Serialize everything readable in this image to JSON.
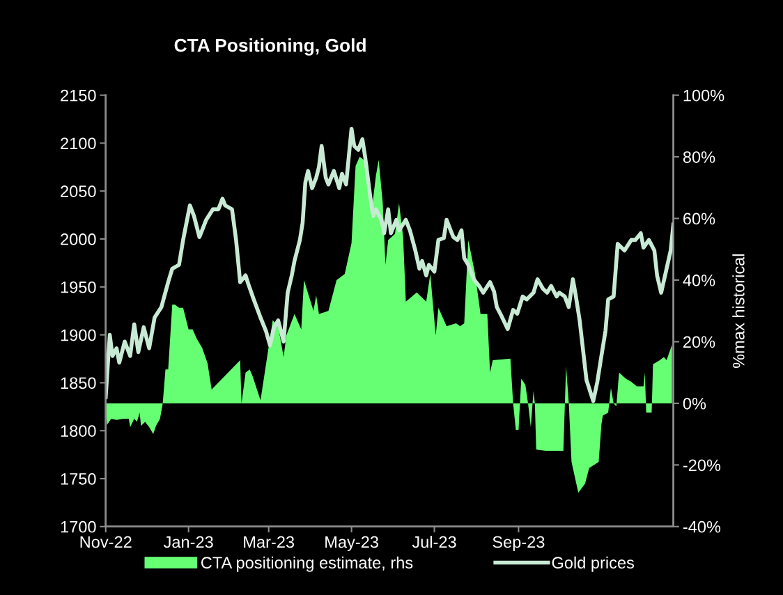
{
  "chart_data": {
    "type": "line",
    "title": "CTA Positioning, Gold",
    "y2label": "%max historical",
    "xlim": [
      "2022-11-01",
      "2023-12-24"
    ],
    "xticks": [
      {
        "value": "2022-11-01",
        "label": "Nov-22"
      },
      {
        "value": "2023-01-01",
        "label": "Jan-23"
      },
      {
        "value": "2023-03-01",
        "label": "Mar-23"
      },
      {
        "value": "2023-05-01",
        "label": "May-23"
      },
      {
        "value": "2023-07-01",
        "label": "Jul-23"
      },
      {
        "value": "2023-09-01",
        "label": "Sep-23"
      }
    ],
    "ylim": [
      1700,
      2150
    ],
    "yticks": [
      1700,
      1750,
      1800,
      1850,
      1900,
      1950,
      2000,
      2050,
      2100,
      2150
    ],
    "y2lim": [
      -40,
      100
    ],
    "y2ticks": [
      {
        "value": -40,
        "label": "-40%"
      },
      {
        "value": -20,
        "label": "-20%"
      },
      {
        "value": 0,
        "label": "0%"
      },
      {
        "value": 20,
        "label": "20%"
      },
      {
        "value": 40,
        "label": "40%"
      },
      {
        "value": 60,
        "label": "60%"
      },
      {
        "value": 80,
        "label": "80%"
      },
      {
        "value": 100,
        "label": "100%"
      }
    ],
    "grid": false,
    "legend": "bottom",
    "series": [
      {
        "name": "CTA positioning estimate, rhs",
        "type": "area",
        "axis": "y2",
        "color": "#66ff73",
        "x": [
          "2022-11-01",
          "2022-11-02",
          "2022-11-05",
          "2022-11-09",
          "2022-11-14",
          "2022-11-18",
          "2022-11-19",
          "2022-11-22",
          "2022-11-24",
          "2022-11-26",
          "2022-11-27",
          "2022-11-30",
          "2022-12-03",
          "2022-12-06",
          "2022-12-08",
          "2022-12-11",
          "2022-12-13",
          "2022-12-15",
          "2022-12-17",
          "2022-12-20",
          "2022-12-22",
          "2022-12-25",
          "2022-12-28",
          "2023-01-01",
          "2023-01-04",
          "2023-01-07",
          "2023-01-11",
          "2023-01-15",
          "2023-01-18",
          "2023-02-08",
          "2023-02-09",
          "2023-02-12",
          "2023-02-15",
          "2023-02-17",
          "2023-02-23",
          "2023-03-04",
          "2023-03-08",
          "2023-03-12",
          "2023-03-14",
          "2023-03-20",
          "2023-03-25",
          "2023-03-27",
          "2023-04-03",
          "2023-04-05",
          "2023-04-07",
          "2023-04-14",
          "2023-04-20",
          "2023-04-26",
          "2023-05-01",
          "2023-05-04",
          "2023-05-07",
          "2023-05-13",
          "2023-05-16",
          "2023-05-19",
          "2023-05-21",
          "2023-05-24",
          "2023-05-26",
          "2023-05-28",
          "2023-06-02",
          "2023-06-05",
          "2023-06-08",
          "2023-06-10",
          "2023-06-18",
          "2023-06-25",
          "2023-06-28",
          "2023-07-02",
          "2023-07-04",
          "2023-07-10",
          "2023-07-17",
          "2023-07-20",
          "2023-07-23",
          "2023-07-26",
          "2023-07-31",
          "2023-08-04",
          "2023-08-09",
          "2023-08-11",
          "2023-08-13",
          "2023-08-26",
          "2023-08-28",
          "2023-08-30",
          "2023-09-01",
          "2023-09-03",
          "2023-09-06",
          "2023-09-08",
          "2023-09-10",
          "2023-09-12",
          "2023-09-13",
          "2023-09-14",
          "2023-09-21",
          "2023-09-27",
          "2023-10-04",
          "2023-10-06",
          "2023-10-08",
          "2023-10-10",
          "2023-10-15",
          "2023-10-20",
          "2023-10-23",
          "2023-10-30",
          "2023-11-01",
          "2023-11-02",
          "2023-11-06",
          "2023-11-08",
          "2023-11-10",
          "2023-11-12",
          "2023-11-14",
          "2023-11-19",
          "2023-11-23",
          "2023-11-27",
          "2023-12-02",
          "2023-12-03",
          "2023-12-04",
          "2023-12-08",
          "2023-12-09",
          "2023-12-14",
          "2023-12-17",
          "2023-12-19",
          "2023-12-23"
        ],
        "values": [
          0,
          -7,
          -5,
          -5.4,
          -5,
          -5,
          -7.7,
          -5,
          -6,
          -3,
          -7.3,
          -6,
          -7.7,
          -10,
          -7.3,
          -5,
          0,
          11,
          11,
          32,
          32,
          31,
          31,
          24,
          24,
          21,
          18,
          13,
          4.5,
          14,
          0,
          10,
          11,
          9,
          1,
          27,
          25,
          15,
          22,
          29,
          24,
          40,
          30,
          35,
          29,
          30,
          40,
          42,
          52,
          77,
          80,
          78,
          63,
          74,
          79,
          65,
          45,
          53,
          55,
          65,
          54,
          33,
          36,
          33,
          42,
          22,
          31,
          25,
          26,
          25,
          26,
          53,
          42,
          29,
          29,
          10,
          14,
          14.5,
          0,
          -8.6,
          -8.6,
          8,
          6,
          0,
          -7.7,
          4,
          0,
          -15,
          -15.4,
          -15.4,
          -15.4,
          12,
          0,
          -19,
          -29,
          -26,
          -21,
          -19,
          -7,
          -4,
          -3,
          5,
          0,
          -1,
          10,
          8,
          7,
          5.5,
          5.5,
          10,
          -3,
          -3,
          12.7,
          14,
          15,
          14,
          19
        ]
      },
      {
        "name": "Gold prices",
        "color": "#c8ead5",
        "x": [
          "2022-11-01",
          "2022-11-04",
          "2022-11-06",
          "2022-11-09",
          "2022-11-11",
          "2022-11-15",
          "2022-11-19",
          "2022-11-22",
          "2022-11-25",
          "2022-11-29",
          "2022-12-03",
          "2022-12-07",
          "2022-12-12",
          "2022-12-17",
          "2022-12-20",
          "2022-12-25",
          "2022-12-28",
          "2023-01-02",
          "2023-01-05",
          "2023-01-09",
          "2023-01-14",
          "2023-01-19",
          "2023-01-23",
          "2023-01-26",
          "2023-01-28",
          "2023-02-02",
          "2023-02-05",
          "2023-02-08",
          "2023-02-12",
          "2023-02-14",
          "2023-02-18",
          "2023-02-23",
          "2023-02-27",
          "2023-03-02",
          "2023-03-05",
          "2023-03-08",
          "2023-03-12",
          "2023-03-15",
          "2023-03-18",
          "2023-03-20",
          "2023-03-24",
          "2023-03-26",
          "2023-03-28",
          "2023-03-30",
          "2023-04-02",
          "2023-04-05",
          "2023-04-07",
          "2023-04-09",
          "2023-04-12",
          "2023-04-14",
          "2023-04-18",
          "2023-04-22",
          "2023-04-24",
          "2023-04-27",
          "2023-05-01",
          "2023-05-03",
          "2023-05-06",
          "2023-05-09",
          "2023-05-11",
          "2023-05-15",
          "2023-05-17",
          "2023-05-19",
          "2023-05-23",
          "2023-05-25",
          "2023-05-28",
          "2023-05-30",
          "2023-06-03",
          "2023-06-05",
          "2023-06-10",
          "2023-06-13",
          "2023-06-17",
          "2023-06-20",
          "2023-06-22",
          "2023-06-25",
          "2023-06-27",
          "2023-07-01",
          "2023-07-04",
          "2023-07-08",
          "2023-07-10",
          "2023-07-13",
          "2023-07-15",
          "2023-07-18",
          "2023-07-21",
          "2023-07-23",
          "2023-07-26",
          "2023-07-30",
          "2023-08-03",
          "2023-08-06",
          "2023-08-11",
          "2023-08-14",
          "2023-08-16",
          "2023-08-20",
          "2023-08-24",
          "2023-08-28",
          "2023-08-31",
          "2023-09-04",
          "2023-09-07",
          "2023-09-12",
          "2023-09-15",
          "2023-09-19",
          "2023-09-22",
          "2023-09-25",
          "2023-09-29",
          "2023-10-01",
          "2023-10-05",
          "2023-10-08",
          "2023-10-11",
          "2023-10-13",
          "2023-10-16",
          "2023-10-21",
          "2023-10-26",
          "2023-10-29",
          "2023-11-01",
          "2023-11-04",
          "2023-11-06",
          "2023-11-10",
          "2023-11-13",
          "2023-11-18",
          "2023-11-23",
          "2023-11-26",
          "2023-11-30",
          "2023-12-02",
          "2023-12-06",
          "2023-12-10",
          "2023-12-12",
          "2023-12-15",
          "2023-12-19",
          "2023-12-22",
          "2023-12-24"
        ],
        "values": [
          1835,
          1900,
          1878,
          1886,
          1871,
          1893,
          1878,
          1911,
          1882,
          1908,
          1886,
          1918,
          1929,
          1955,
          1969,
          1973,
          1999,
          2035,
          2024,
          2002,
          2020,
          2031,
          2031,
          2042,
          2035,
          2031,
          1999,
          1955,
          1962,
          1953,
          1937,
          1918,
          1904,
          1889,
          1908,
          1915,
          1893,
          1944,
          1962,
          1977,
          1999,
          2017,
          2059,
          2071,
          2053,
          2064,
          2075,
          2097,
          2064,
          2057,
          2071,
          2053,
          2068,
          2057,
          2115,
          2097,
          2093,
          2104,
          2086,
          2042,
          2024,
          2031,
          2020,
          2006,
          2031,
          2006,
          2020,
          2009,
          2020,
          2009,
          1988,
          1969,
          1977,
          1962,
          1973,
          1966,
          1999,
          2001,
          2020,
          2009,
          2002,
          1999,
          2009,
          1980,
          1973,
          1958,
          1951,
          1944,
          1955,
          1945,
          1929,
          1918,
          1906,
          1926,
          1922,
          1940,
          1937,
          1944,
          1958,
          1948,
          1944,
          1951,
          1940,
          1944,
          1940,
          1929,
          1958,
          1942,
          1915,
          1853,
          1831,
          1851,
          1878,
          1904,
          1937,
          1940,
          1995,
          1988,
          1999,
          1999,
          2006,
          1991,
          1999,
          1988,
          1962,
          1944,
          1969,
          1988,
          2015
        ]
      }
    ]
  }
}
